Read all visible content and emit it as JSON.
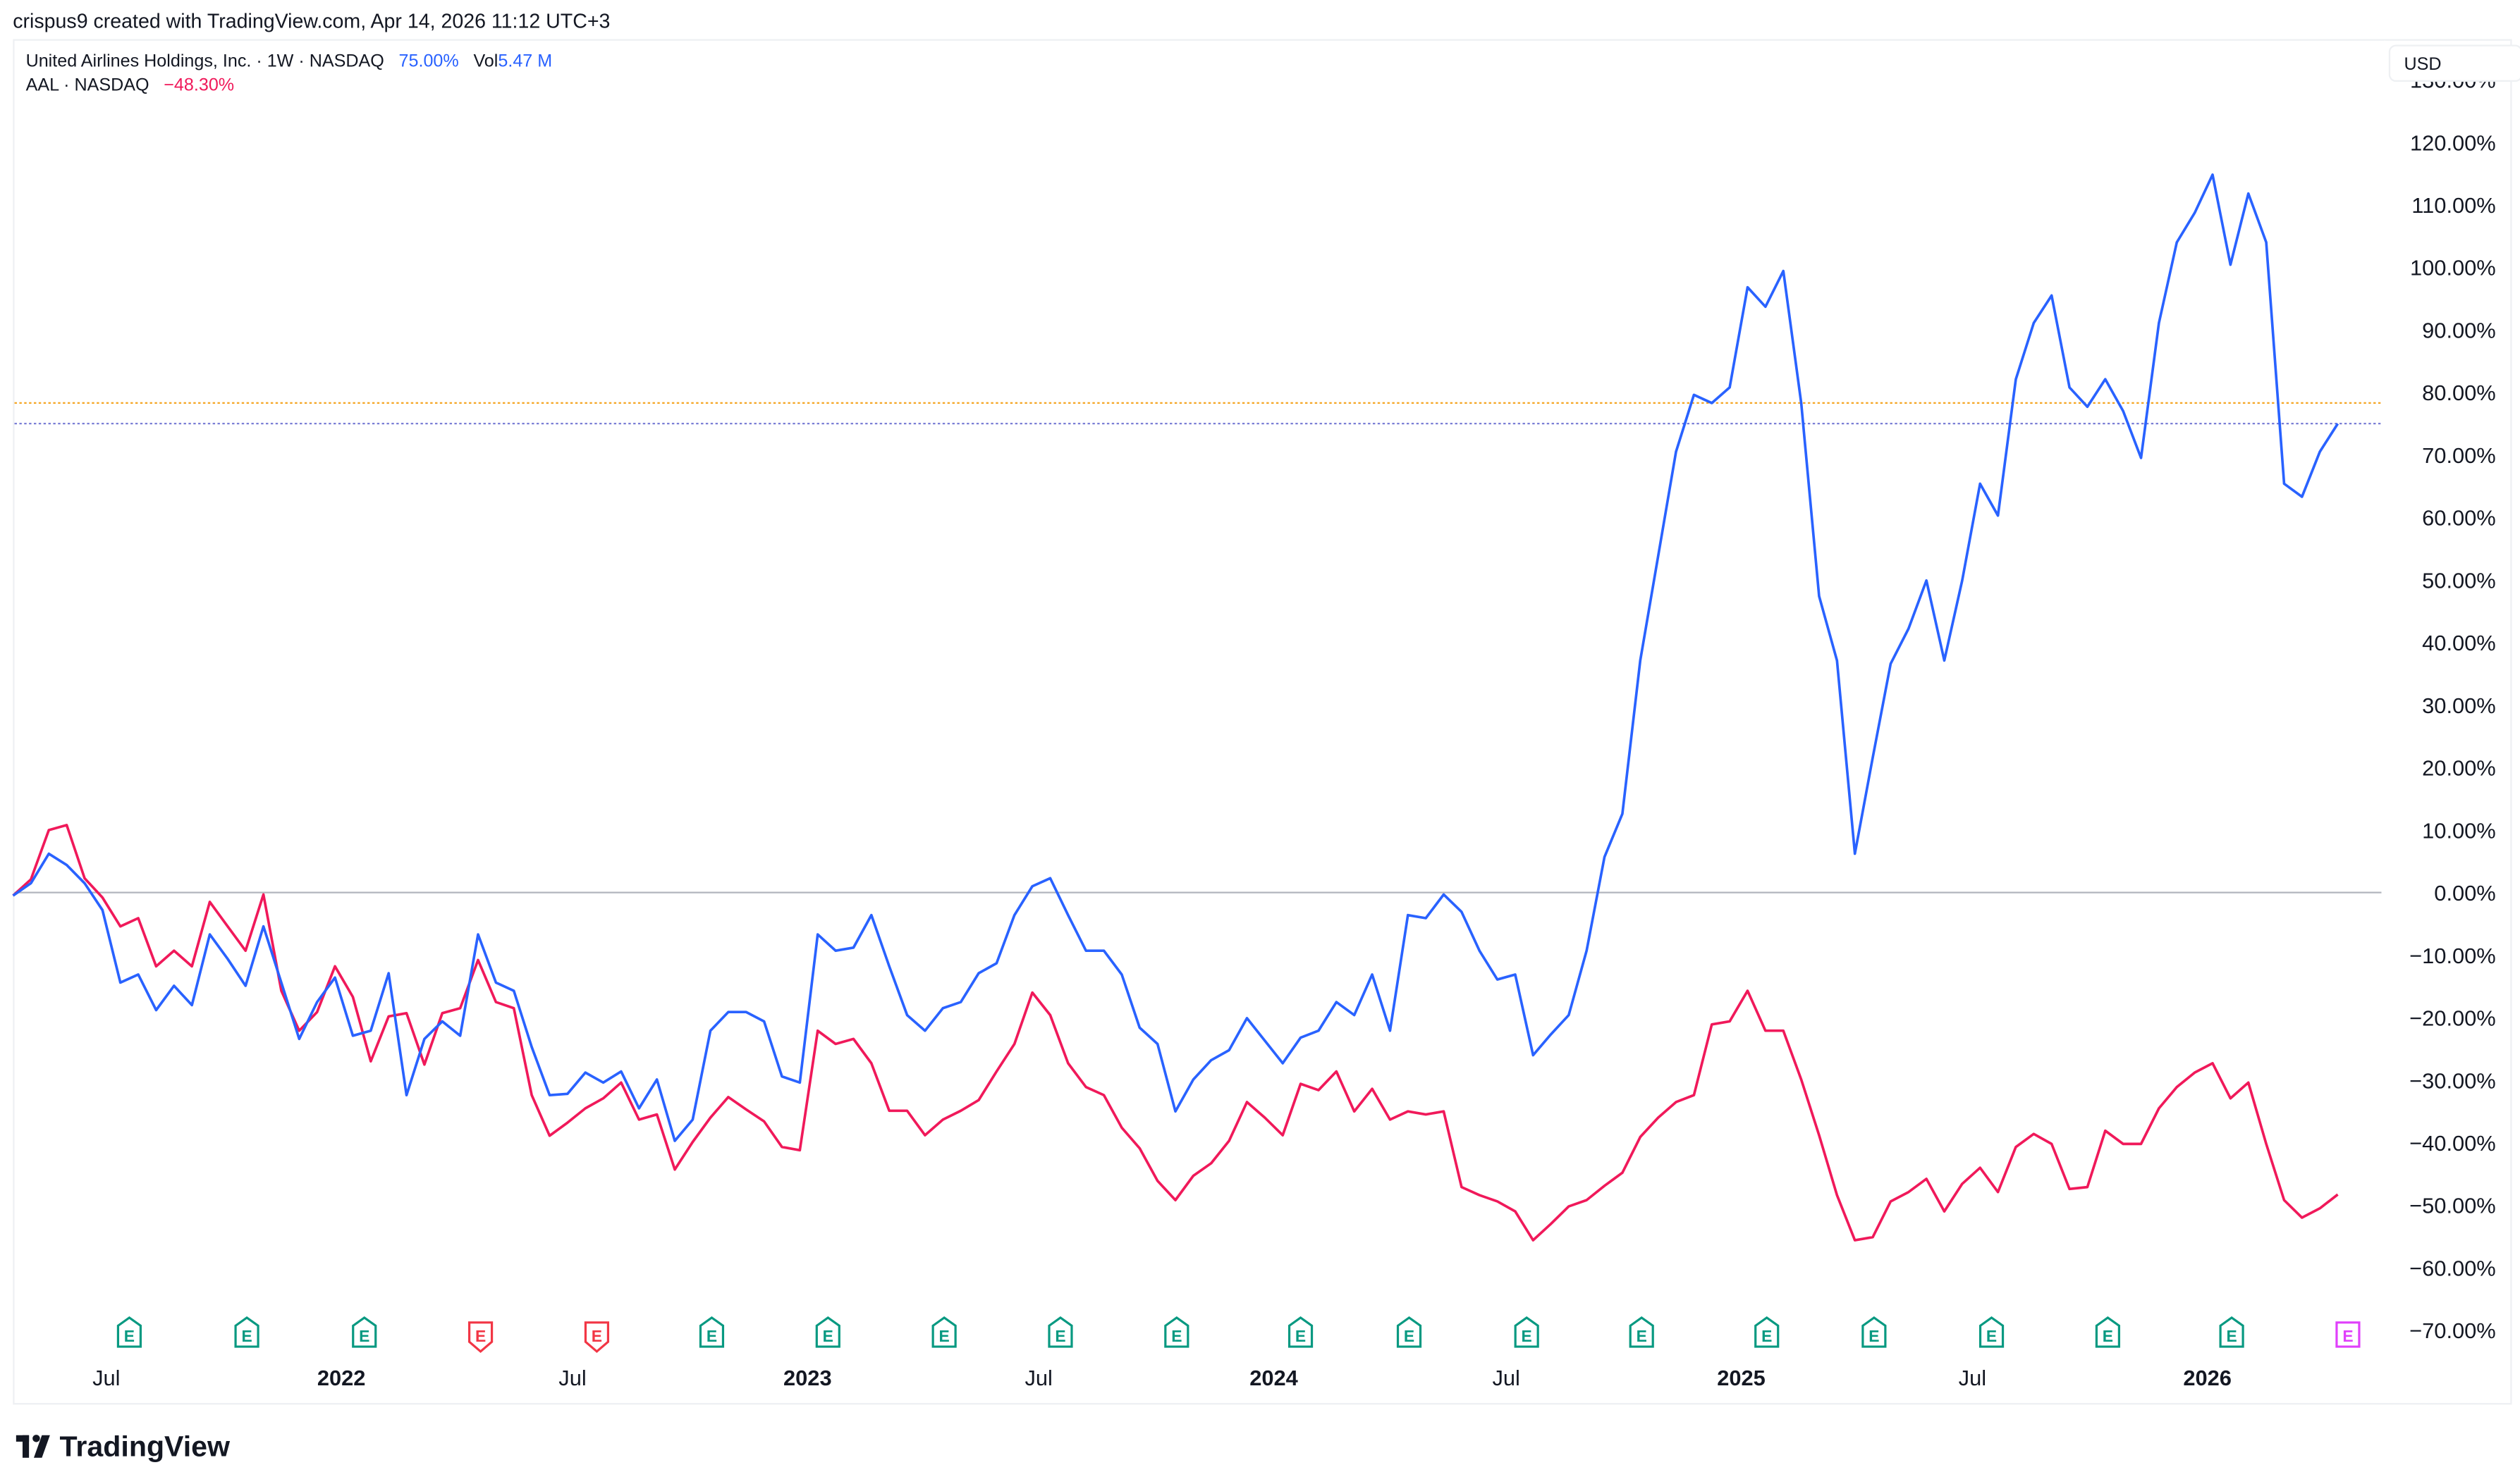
{
  "header": {
    "attribution": "crispus9 created with TradingView.com, Apr 14, 2026 11:12 UTC+3"
  },
  "legend": {
    "main": {
      "title": "United Airlines Holdings, Inc. · 1W · NASDAQ",
      "change": "75.00%",
      "vol_label": "Vol",
      "vol_value": "5.47 M",
      "color": "#2962FF"
    },
    "compare": {
      "title": "AAL · NASDAQ",
      "change": "−48.30%",
      "color": "#F0195A"
    }
  },
  "currency_button": "USD",
  "logo": {
    "text": "TradingView"
  },
  "colors": {
    "ual_line": "#2962FF",
    "aal_line": "#F0195A",
    "zero_line": "#B2B5BE",
    "ref_line_orange": "#F5A623",
    "ref_line_blue": "#7B7FD6",
    "earnings_beat": "#089981",
    "earnings_miss": "#F23645",
    "earnings_upcoming": "#E040FB"
  },
  "chart_data": {
    "type": "line",
    "interval": "1W",
    "y_unit": "percent change",
    "ylim": [
      -72,
      132
    ],
    "y_ticks": [
      "130.00%",
      "120.00%",
      "110.00%",
      "100.00%",
      "90.00%",
      "80.00%",
      "70.00%",
      "60.00%",
      "50.00%",
      "40.00%",
      "30.00%",
      "20.00%",
      "10.00%",
      "0.00%",
      "−10.00%",
      "−20.00%",
      "−30.00%",
      "−40.00%",
      "−50.00%",
      "−60.00%",
      "−70.00%"
    ],
    "y_tick_values": [
      130,
      120,
      110,
      100,
      90,
      80,
      70,
      60,
      50,
      40,
      30,
      20,
      10,
      0,
      -10,
      -20,
      -30,
      -40,
      -50,
      -60,
      -70
    ],
    "x_ticks": [
      {
        "label": "Jul",
        "date": "2021-07-01",
        "bold": false
      },
      {
        "label": "2022",
        "date": "2022-01-01",
        "bold": true
      },
      {
        "label": "Jul",
        "date": "2022-07-01",
        "bold": false
      },
      {
        "label": "2023",
        "date": "2023-01-01",
        "bold": true
      },
      {
        "label": "Jul",
        "date": "2023-07-01",
        "bold": false
      },
      {
        "label": "2024",
        "date": "2024-01-01",
        "bold": true
      },
      {
        "label": "Jul",
        "date": "2024-07-01",
        "bold": false
      },
      {
        "label": "2025",
        "date": "2025-01-01",
        "bold": true
      },
      {
        "label": "Jul",
        "date": "2025-07-01",
        "bold": false
      },
      {
        "label": "2026",
        "date": "2026-01-01",
        "bold": true
      }
    ],
    "reference_lines": [
      {
        "value": 78.3,
        "style": "dotted",
        "color": "#F5A623"
      },
      {
        "value": 75.0,
        "style": "dotted",
        "color": "#7B7FD6"
      },
      {
        "value": 0,
        "style": "solid",
        "color": "#B2B5BE"
      }
    ],
    "x": [
      "2021-04-19",
      "2021-05-03",
      "2021-05-17",
      "2021-05-31",
      "2021-06-14",
      "2021-06-28",
      "2021-07-12",
      "2021-07-26",
      "2021-08-09",
      "2021-08-23",
      "2021-09-06",
      "2021-09-20",
      "2021-10-04",
      "2021-10-18",
      "2021-11-01",
      "2021-11-15",
      "2021-11-29",
      "2021-12-13",
      "2021-12-27",
      "2022-01-10",
      "2022-01-24",
      "2022-02-07",
      "2022-02-21",
      "2022-03-07",
      "2022-03-21",
      "2022-04-04",
      "2022-04-18",
      "2022-05-02",
      "2022-05-16",
      "2022-05-30",
      "2022-06-13",
      "2022-06-27",
      "2022-07-11",
      "2022-07-25",
      "2022-08-08",
      "2022-08-22",
      "2022-09-05",
      "2022-09-19",
      "2022-10-03",
      "2022-10-17",
      "2022-10-31",
      "2022-11-14",
      "2022-11-28",
      "2022-12-12",
      "2022-12-26",
      "2023-01-09",
      "2023-01-23",
      "2023-02-06",
      "2023-02-20",
      "2023-03-06",
      "2023-03-20",
      "2023-04-03",
      "2023-04-17",
      "2023-05-01",
      "2023-05-15",
      "2023-05-29",
      "2023-06-12",
      "2023-06-26",
      "2023-07-10",
      "2023-07-24",
      "2023-08-07",
      "2023-08-21",
      "2023-09-04",
      "2023-09-18",
      "2023-10-02",
      "2023-10-16",
      "2023-10-30",
      "2023-11-13",
      "2023-11-27",
      "2023-12-11",
      "2023-12-25",
      "2024-01-08",
      "2024-01-22",
      "2024-02-05",
      "2024-02-19",
      "2024-03-04",
      "2024-03-18",
      "2024-04-01",
      "2024-04-15",
      "2024-04-29",
      "2024-05-13",
      "2024-05-27",
      "2024-06-10",
      "2024-06-24",
      "2024-07-08",
      "2024-07-22",
      "2024-08-05",
      "2024-08-19",
      "2024-09-02",
      "2024-09-16",
      "2024-09-30",
      "2024-10-14",
      "2024-10-28",
      "2024-11-11",
      "2024-11-25",
      "2024-12-09",
      "2024-12-23",
      "2025-01-06",
      "2025-01-20",
      "2025-02-03",
      "2025-02-17",
      "2025-03-03",
      "2025-03-17",
      "2025-03-31",
      "2025-04-14",
      "2025-04-28",
      "2025-05-12",
      "2025-05-26",
      "2025-06-09",
      "2025-06-23",
      "2025-07-07",
      "2025-07-21",
      "2025-08-04",
      "2025-08-18",
      "2025-09-01",
      "2025-09-15",
      "2025-09-29",
      "2025-10-13",
      "2025-10-27",
      "2025-11-10",
      "2025-11-24",
      "2025-12-08",
      "2025-12-22",
      "2026-01-05",
      "2026-01-19",
      "2026-02-02",
      "2026-02-16",
      "2026-03-02",
      "2026-03-16",
      "2026-03-30",
      "2026-04-13"
    ],
    "series": [
      {
        "name": "United Airlines Holdings, Inc.",
        "color": "#2962FF",
        "values": [
          -0.5,
          1.5,
          6.2,
          4.4,
          1.5,
          -2.8,
          -14.4,
          -13.1,
          -18.8,
          -14.9,
          -18.0,
          -6.7,
          -10.6,
          -14.9,
          -5.4,
          -14.4,
          -23.4,
          -17.5,
          -13.6,
          -22.9,
          -22.1,
          -12.9,
          -32.4,
          -23.4,
          -20.6,
          -22.9,
          -6.7,
          -14.4,
          -15.7,
          -24.7,
          -32.4,
          -32.2,
          -28.8,
          -30.4,
          -28.6,
          -34.5,
          -29.9,
          -39.7,
          -36.3,
          -22.1,
          -19.1,
          -19.1,
          -20.6,
          -29.4,
          -30.4,
          -6.7,
          -9.3,
          -8.8,
          -3.6,
          -11.8,
          -19.6,
          -22.1,
          -18.5,
          -17.5,
          -12.9,
          -11.3,
          -3.6,
          1.0,
          2.3,
          -3.6,
          -9.3,
          -9.3,
          -13.1,
          -21.6,
          -24.2,
          -35.0,
          -29.9,
          -26.8,
          -25.2,
          -20.1,
          -23.7,
          -27.3,
          -23.2,
          -22.1,
          -17.5,
          -19.6,
          -13.1,
          -22.1,
          -3.6,
          -4.1,
          -0.3,
          -3.1,
          -9.3,
          -13.9,
          -13.1,
          -26.0,
          -22.7,
          -19.6,
          -9.3,
          5.7,
          12.6,
          37.1,
          53.8,
          70.5,
          79.6,
          78.3,
          80.8,
          96.8,
          93.7,
          99.4,
          78.3,
          47.4,
          37.1,
          6.2,
          21.6,
          36.6,
          42.2,
          49.9,
          37.1,
          49.9,
          65.4,
          60.3,
          82.1,
          91.1,
          95.5,
          80.8,
          77.7,
          82.1,
          77.0,
          69.5,
          91.1,
          104.0,
          108.7,
          114.8,
          100.4,
          111.8,
          104.0,
          65.4,
          63.3,
          70.5,
          75.0
        ]
      },
      {
        "name": "AAL",
        "color": "#F0195A",
        "values": [
          -0.5,
          2.1,
          10.0,
          10.8,
          2.3,
          -0.8,
          -5.4,
          -4.1,
          -11.8,
          -9.3,
          -11.8,
          -1.5,
          -5.4,
          -9.3,
          -0.3,
          -15.7,
          -22.1,
          -19.1,
          -11.8,
          -16.7,
          -27.0,
          -19.8,
          -19.3,
          -27.5,
          -19.3,
          -18.5,
          -10.8,
          -17.5,
          -18.5,
          -32.4,
          -38.9,
          -36.8,
          -34.5,
          -32.9,
          -30.4,
          -36.3,
          -35.5,
          -44.3,
          -39.9,
          -36.0,
          -32.7,
          -34.7,
          -36.6,
          -40.7,
          -41.2,
          -22.1,
          -24.2,
          -23.4,
          -27.3,
          -34.9,
          -34.9,
          -38.8,
          -36.3,
          -34.9,
          -33.2,
          -28.6,
          -24.2,
          -16.0,
          -19.6,
          -27.3,
          -31.1,
          -32.4,
          -37.6,
          -40.9,
          -46.1,
          -49.2,
          -45.3,
          -43.3,
          -39.7,
          -33.5,
          -36.0,
          -38.8,
          -30.6,
          -31.6,
          -28.6,
          -35.0,
          -31.4,
          -36.3,
          -35.0,
          -35.5,
          -35.0,
          -47.1,
          -48.4,
          -49.4,
          -51.0,
          -55.6,
          -53.0,
          -50.2,
          -49.2,
          -46.9,
          -44.8,
          -39.1,
          -36.0,
          -33.5,
          -32.4,
          -21.1,
          -20.6,
          -15.7,
          -22.1,
          -22.1,
          -29.9,
          -38.8,
          -48.4,
          -55.6,
          -55.1,
          -49.4,
          -47.9,
          -45.8,
          -51.0,
          -46.6,
          -44.0,
          -47.9,
          -40.7,
          -38.6,
          -40.2,
          -47.4,
          -47.1,
          -38.1,
          -40.2,
          -40.2,
          -34.5,
          -31.1,
          -28.8,
          -27.3,
          -32.9,
          -30.4,
          -40.2,
          -49.2,
          -52.0,
          -50.5,
          -48.3
        ]
      }
    ],
    "earnings_markers": [
      {
        "date": "2021-07-19",
        "label": "E",
        "kind": "beat"
      },
      {
        "date": "2021-10-19",
        "label": "E",
        "kind": "beat"
      },
      {
        "date": "2022-01-19",
        "label": "E",
        "kind": "beat"
      },
      {
        "date": "2022-04-20",
        "label": "E",
        "kind": "miss"
      },
      {
        "date": "2022-07-20",
        "label": "E",
        "kind": "miss"
      },
      {
        "date": "2022-10-18",
        "label": "E",
        "kind": "beat"
      },
      {
        "date": "2023-01-17",
        "label": "E",
        "kind": "beat"
      },
      {
        "date": "2023-04-18",
        "label": "E",
        "kind": "beat"
      },
      {
        "date": "2023-07-18",
        "label": "E",
        "kind": "beat"
      },
      {
        "date": "2023-10-17",
        "label": "E",
        "kind": "beat"
      },
      {
        "date": "2024-01-22",
        "label": "E",
        "kind": "beat"
      },
      {
        "date": "2024-04-16",
        "label": "E",
        "kind": "beat"
      },
      {
        "date": "2024-07-17",
        "label": "E",
        "kind": "beat"
      },
      {
        "date": "2024-10-15",
        "label": "E",
        "kind": "beat"
      },
      {
        "date": "2025-01-21",
        "label": "E",
        "kind": "beat"
      },
      {
        "date": "2025-04-15",
        "label": "E",
        "kind": "beat"
      },
      {
        "date": "2025-07-16",
        "label": "E",
        "kind": "beat"
      },
      {
        "date": "2025-10-15",
        "label": "E",
        "kind": "beat"
      },
      {
        "date": "2026-01-20",
        "label": "E",
        "kind": "beat"
      },
      {
        "date": "2026-04-21",
        "label": "E",
        "kind": "upcoming"
      }
    ]
  }
}
